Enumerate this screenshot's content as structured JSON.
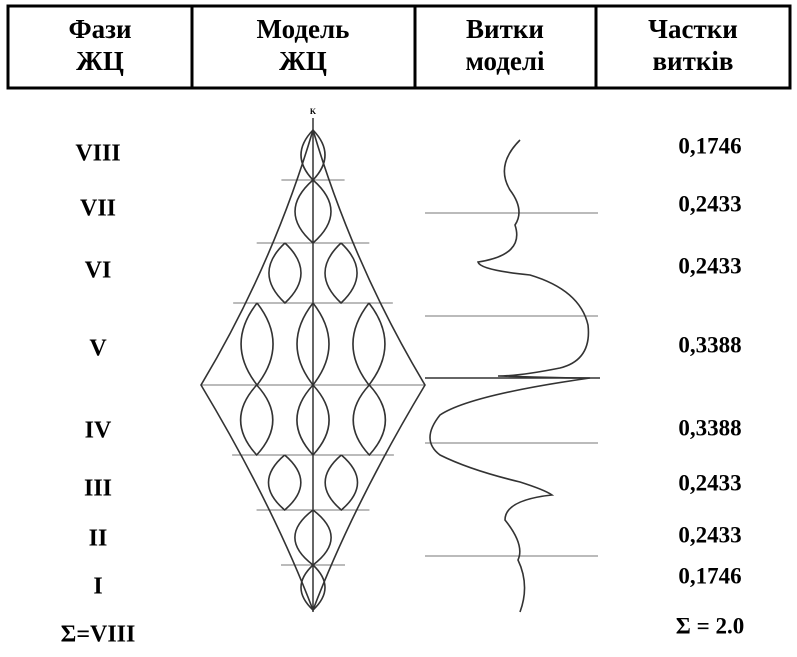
{
  "header": [
    "Фази ЖЦ",
    "Модель ЖЦ",
    "Витки моделі",
    "Частки витків"
  ],
  "rows": [
    [
      "VIII",
      "0,1746"
    ],
    [
      "VII",
      "0,2433"
    ],
    [
      "VI",
      "0,2433"
    ],
    [
      "V",
      "0,3388"
    ],
    [
      "IV",
      "0,3388"
    ],
    [
      "III",
      "0,2433"
    ],
    [
      "II",
      "0,2433"
    ],
    [
      "I",
      "0,1746"
    ]
  ],
  "total": [
    "Σ=VIII",
    "Σ = 2.0"
  ]
}
